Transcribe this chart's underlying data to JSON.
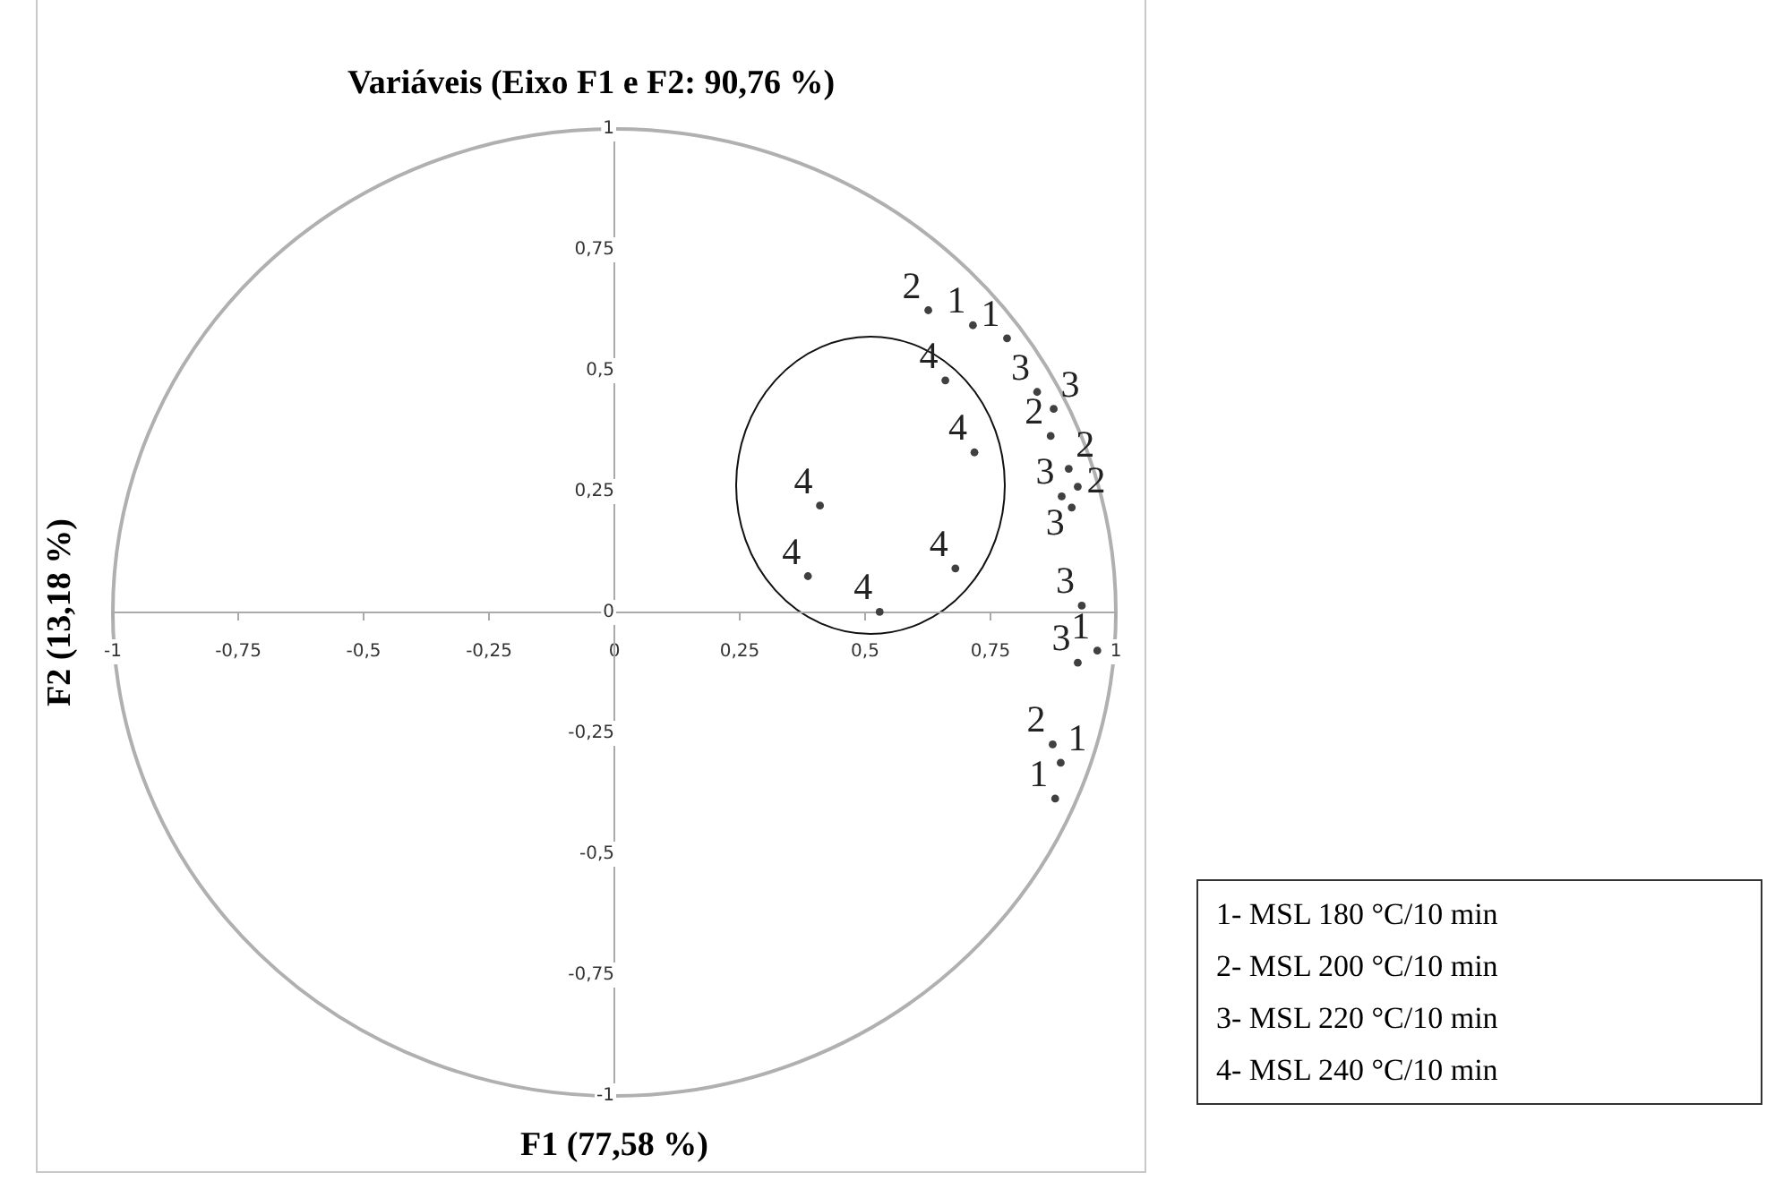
{
  "chart_data": {
    "type": "scatter",
    "title": "Variáveis (Eixo F1 e F2: 90,76 %)",
    "xlabel": "F1 (77,58 %)",
    "ylabel": "F2 (13,18 %)",
    "series": [
      {
        "name": "1",
        "color": "#404040",
        "x": [
          0.715,
          0.783,
          0.963,
          0.89,
          0.879
        ],
        "values": [
          0.594,
          0.567,
          -0.079,
          -0.311,
          -0.385
        ]
      },
      {
        "name": "2",
        "color": "#404040",
        "x": [
          0.626,
          0.87,
          0.906,
          0.924,
          0.874
        ],
        "values": [
          0.625,
          0.365,
          0.297,
          0.26,
          -0.273
        ]
      },
      {
        "name": "3",
        "color": "#404040",
        "x": [
          0.843,
          0.876,
          0.892,
          0.912,
          0.932,
          0.924
        ],
        "values": [
          0.456,
          0.421,
          0.24,
          0.217,
          0.014,
          -0.104
        ]
      },
      {
        "name": "4",
        "color": "#404040",
        "x": [
          0.66,
          0.718,
          0.41,
          0.386,
          0.68,
          0.529
        ],
        "values": [
          0.48,
          0.331,
          0.221,
          0.075,
          0.091,
          0.001
        ]
      }
    ],
    "xlim": [
      -1,
      1
    ],
    "ylim": [
      -1,
      1
    ],
    "xticks": [
      {
        "value": -1,
        "label": "-1"
      },
      {
        "value": -0.75,
        "label": "-0,75"
      },
      {
        "value": -0.5,
        "label": "-0,5"
      },
      {
        "value": -0.25,
        "label": "-0,25"
      },
      0,
      {
        "value": 0.25,
        "label": "0,25"
      },
      {
        "value": 0.5,
        "label": "0,5"
      },
      {
        "value": 0.75,
        "label": "0,75"
      },
      1
    ],
    "yticks": [
      {
        "value": -1,
        "label": "-1"
      },
      {
        "value": -0.75,
        "label": "-0,75"
      },
      {
        "value": -0.5,
        "label": "-0,5"
      },
      {
        "value": -0.25,
        "label": "-0,25"
      },
      0,
      {
        "value": 0.25,
        "label": "0,25"
      },
      {
        "value": 0.5,
        "label": "0,5"
      },
      {
        "value": 0.75,
        "label": "0,75"
      },
      1
    ],
    "marker": "circle",
    "grid": false,
    "annotations": [
      "1- MSL 180 °C/10 min",
      "2- MSL 200 °C/10 min",
      "3- MSL 220 °C/10 min",
      "4- MSL 240 °C/10 min"
    ]
  }
}
